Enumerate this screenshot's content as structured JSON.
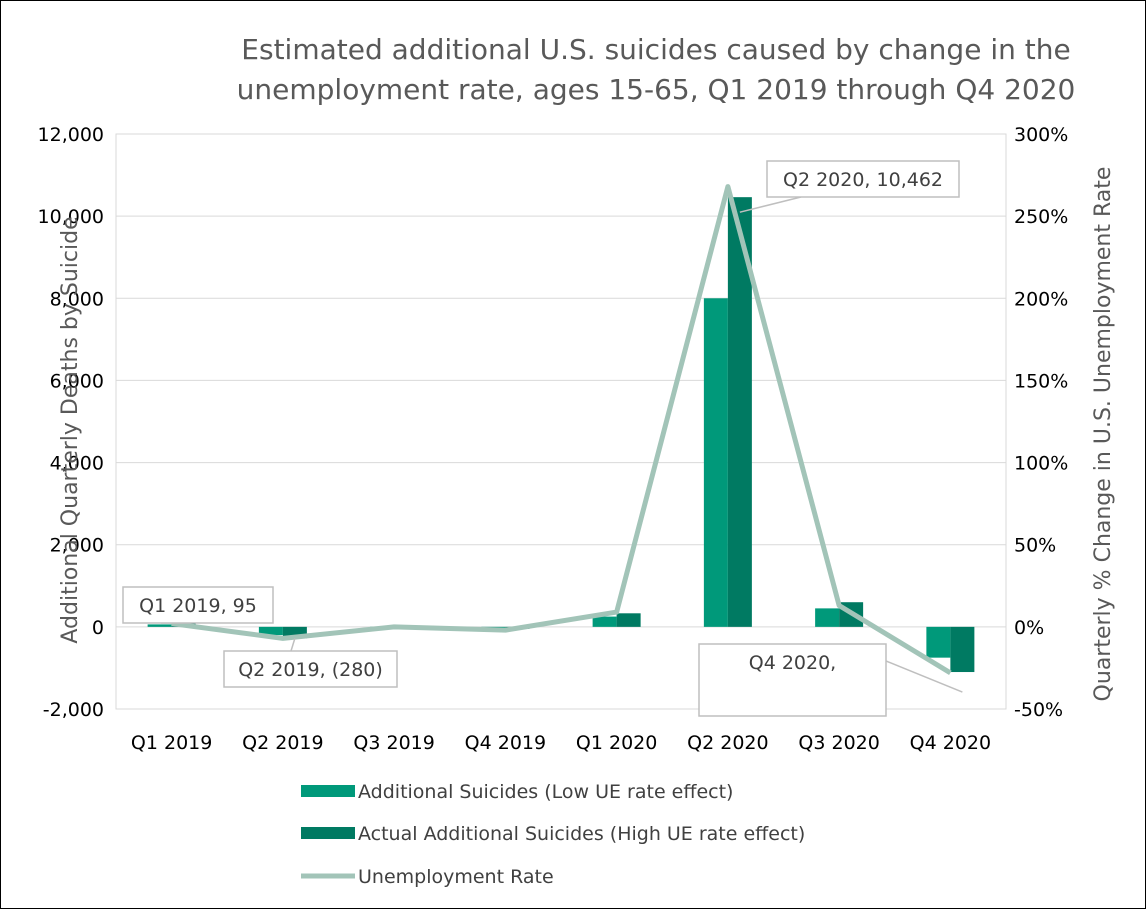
{
  "chart_data": {
    "type": "bar",
    "title_line1": "Estimated additional U.S. suicides caused by change in the",
    "title_line2": "unemployment rate, ages 15-65, Q1 2019 through Q4 2020",
    "ylabel": "Additional Quarterly Deaths by Suicide",
    "y2label": "Quarterly %  Change in U.S. Unemployment Rate",
    "categories": [
      "Q1 2019",
      "Q2 2019",
      "Q3 2019",
      "Q4 2019",
      "Q1 2020",
      "Q2 2020",
      "Q3 2020",
      "Q4 2020"
    ],
    "ylim": [
      -2000,
      12000
    ],
    "y2lim": [
      -50,
      300
    ],
    "yticks": [
      "-2,000",
      "0",
      "2,000",
      "4,000",
      "6,000",
      "8,000",
      "10,000",
      "12,000"
    ],
    "y2ticks": [
      "-50%",
      "0%",
      "50%",
      "100%",
      "150%",
      "200%",
      "250%",
      "300%"
    ],
    "grid": true,
    "legend_position": "bottom",
    "series": [
      {
        "name": "Additional Suicides (Low UE rate effect)",
        "kind": "bar",
        "color": "#00997a",
        "values": [
          60,
          -200,
          -20,
          -30,
          250,
          8000,
          450,
          -750
        ]
      },
      {
        "name": "Actual Additional Suicides (High UE rate effect)",
        "kind": "bar",
        "color": "#007a62",
        "values": [
          95,
          -280,
          -30,
          -50,
          330,
          10462,
          600,
          -1100
        ]
      },
      {
        "name": "Unemployment Rate",
        "kind": "line",
        "axis": "right",
        "color": "#a2c4b8",
        "values": [
          2,
          -7,
          0,
          -2,
          9,
          268,
          13,
          -28
        ]
      }
    ],
    "annotations": [
      "Q1 2019, 95",
      "Q2 2019, (280)",
      "Q2 2020, 10,462",
      "Q4 2020,"
    ]
  }
}
